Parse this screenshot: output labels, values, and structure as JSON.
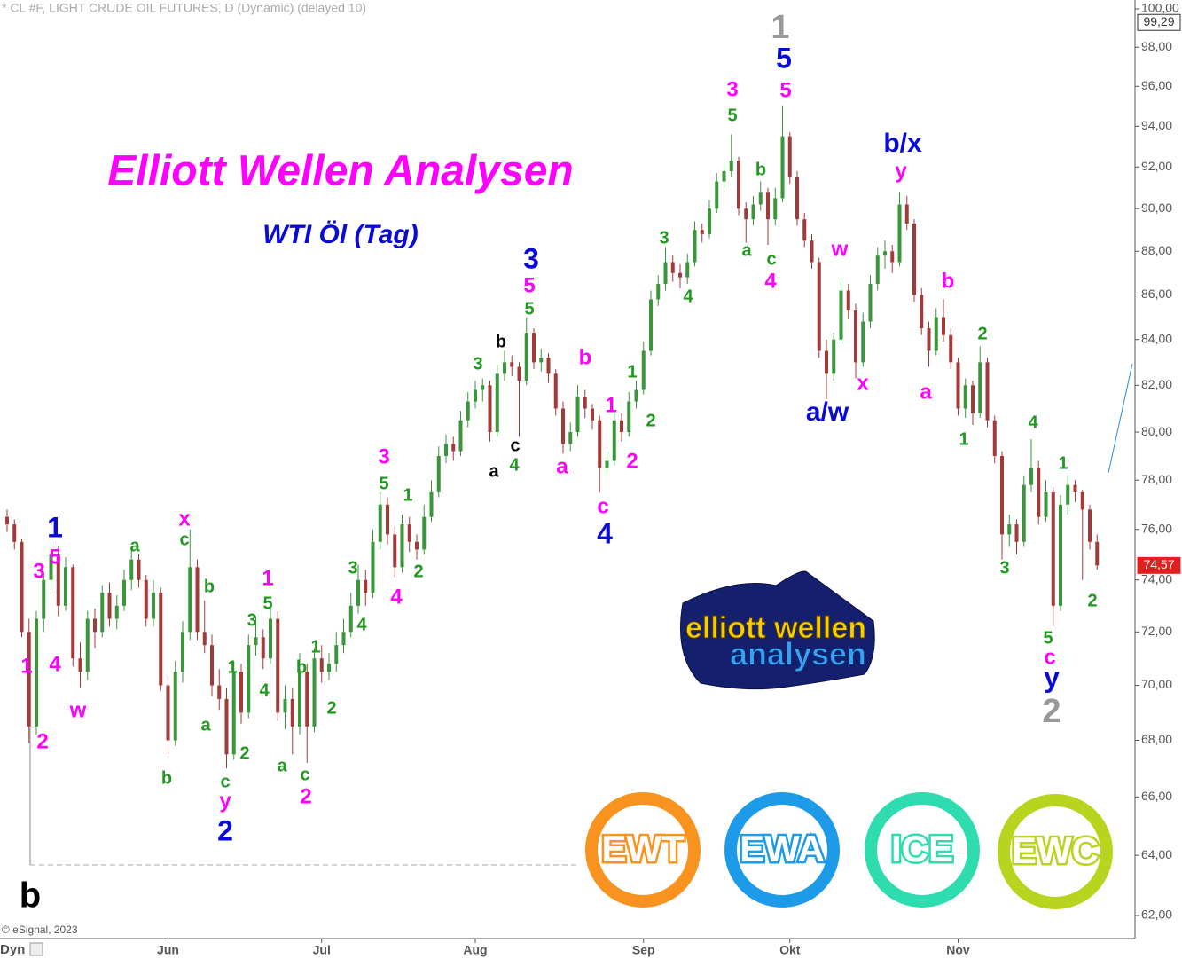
{
  "chart_data": {
    "type": "candlestick",
    "header": "* CL #F, LIGHT CRUDE OIL FUTURES, D (Dynamic) (delayed 10)",
    "title": "Elliott Wellen Analysen",
    "subtitle": "WTI Öl (Tag)",
    "copyright": "© eSignal, 2023",
    "dyn_label": "Dyn",
    "log_scale": true,
    "up_color": "#3a963a",
    "down_color": "#a33a3a",
    "ylim": [
      62,
      100
    ],
    "yticks": [
      {
        "value": 62,
        "label": "62,00"
      },
      {
        "value": 64,
        "label": "64,00"
      },
      {
        "value": 66,
        "label": "66,00"
      },
      {
        "value": 68,
        "label": "68,00"
      },
      {
        "value": 70,
        "label": "70,00"
      },
      {
        "value": 72,
        "label": "72,00"
      },
      {
        "value": 74,
        "label": "74,00"
      },
      {
        "value": 76,
        "label": "76,00"
      },
      {
        "value": 78,
        "label": "78,00"
      },
      {
        "value": 80,
        "label": "80,00"
      },
      {
        "value": 82,
        "label": "82,00"
      },
      {
        "value": 84,
        "label": "84,00"
      },
      {
        "value": 86,
        "label": "86,00"
      },
      {
        "value": 88,
        "label": "88,00"
      },
      {
        "value": 90,
        "label": "90,00"
      },
      {
        "value": 92,
        "label": "92,00"
      },
      {
        "value": 94,
        "label": "94,00"
      },
      {
        "value": 96,
        "label": "96,00"
      },
      {
        "value": 98,
        "label": "98,00"
      },
      {
        "value": 100,
        "label": "100,00"
      }
    ],
    "xticks": [
      {
        "value": 22,
        "label": "Jun"
      },
      {
        "value": 43,
        "label": "Jul"
      },
      {
        "value": 64,
        "label": "Aug"
      },
      {
        "value": 87,
        "label": "Sep"
      },
      {
        "value": 107,
        "label": "Okt"
      },
      {
        "value": 130,
        "label": "Nov"
      }
    ],
    "price_labels": [
      {
        "value": 99.29,
        "label": "99,29",
        "color": "#333"
      },
      {
        "value": 74.57,
        "label": "74,57",
        "color": "#e02020"
      }
    ],
    "candles": [
      [
        76.5,
        76.8,
        75.9,
        76.2
      ],
      [
        76.2,
        76.4,
        75.2,
        75.5
      ],
      [
        75.5,
        75.6,
        71.8,
        72
      ],
      [
        72,
        72.5,
        67.9,
        68.5
      ],
      [
        68.5,
        72.8,
        68.2,
        72.5
      ],
      [
        72.5,
        74.3,
        72,
        74
      ],
      [
        74,
        75.5,
        73.6,
        75
      ],
      [
        75,
        75.3,
        72.6,
        73
      ],
      [
        73,
        74.9,
        72.8,
        74.5
      ],
      [
        74.5,
        74.6,
        70.7,
        71
      ],
      [
        71,
        71.6,
        69.9,
        70.5
      ],
      [
        70.5,
        72.8,
        70.2,
        72.5
      ],
      [
        72.5,
        72.9,
        71.4,
        72
      ],
      [
        72,
        73.8,
        71.8,
        73.5
      ],
      [
        73.5,
        73.9,
        72.2,
        72.5
      ],
      [
        72.5,
        73.4,
        72.1,
        73
      ],
      [
        73,
        74.4,
        72.8,
        74
      ],
      [
        74,
        75.3,
        73.6,
        74.8
      ],
      [
        74.8,
        75,
        73.7,
        74
      ],
      [
        74,
        74.2,
        72.2,
        72.5
      ],
      [
        72.5,
        74,
        72.2,
        73.5
      ],
      [
        73.5,
        73.7,
        69.8,
        70
      ],
      [
        70,
        70.4,
        67.5,
        68
      ],
      [
        68,
        70.9,
        67.8,
        70.5
      ],
      [
        70.5,
        72.4,
        70.1,
        72
      ],
      [
        72,
        76,
        71.7,
        74.5
      ],
      [
        74.5,
        74.8,
        71.7,
        72
      ],
      [
        72,
        73.2,
        71.2,
        71.5
      ],
      [
        71.5,
        71.9,
        69.6,
        70
      ],
      [
        70,
        70.6,
        69.1,
        69.5
      ],
      [
        69.5,
        69.9,
        67,
        67.5
      ],
      [
        67.5,
        70.9,
        67.3,
        70.5
      ],
      [
        70.5,
        70.8,
        68.6,
        69
      ],
      [
        69,
        71.9,
        68.8,
        71.5
      ],
      [
        71.5,
        72.6,
        71.1,
        71.8
      ],
      [
        71.8,
        72.1,
        70.6,
        71
      ],
      [
        71,
        73.2,
        70.8,
        72.5
      ],
      [
        72.5,
        72.8,
        68.7,
        69
      ],
      [
        69,
        70,
        68.4,
        69.5
      ],
      [
        69.5,
        69.9,
        67.5,
        68.5
      ],
      [
        68.5,
        71.2,
        68.2,
        70.5
      ],
      [
        70.5,
        70.8,
        67.2,
        68.5
      ],
      [
        68.5,
        71.4,
        68.3,
        71
      ],
      [
        71,
        71.5,
        70.1,
        70.5
      ],
      [
        70.5,
        71.2,
        70.2,
        70.8
      ],
      [
        70.8,
        72,
        70.5,
        71.5
      ],
      [
        71.5,
        72.5,
        71.2,
        72
      ],
      [
        72,
        73.5,
        71.8,
        73
      ],
      [
        73,
        74.6,
        72.7,
        74
      ],
      [
        74,
        74.4,
        73,
        73.5
      ],
      [
        73.5,
        76,
        73.3,
        75.5
      ],
      [
        75.5,
        77.5,
        75.2,
        77
      ],
      [
        77,
        77.3,
        75.4,
        75.8
      ],
      [
        75.8,
        76.1,
        74.1,
        74.5
      ],
      [
        74.5,
        76.6,
        74.3,
        76.2
      ],
      [
        76.2,
        76.5,
        75.1,
        75.5
      ],
      [
        75.5,
        75.8,
        74.8,
        75.2
      ],
      [
        75.2,
        77,
        75,
        76.5
      ],
      [
        76.5,
        78,
        76.3,
        77.5
      ],
      [
        77.5,
        79.4,
        77.3,
        79
      ],
      [
        79,
        79.9,
        78.7,
        79.5
      ],
      [
        79.5,
        79.8,
        78.8,
        79.2
      ],
      [
        79.2,
        80.9,
        79,
        80.5
      ],
      [
        80.5,
        81.7,
        80.2,
        81.3
      ],
      [
        81.3,
        82.2,
        81,
        81.8
      ],
      [
        81.8,
        82.3,
        81.3,
        82
      ],
      [
        82,
        82.2,
        79.6,
        80
      ],
      [
        80,
        82.9,
        79.8,
        82.5
      ],
      [
        82.5,
        83.5,
        82.2,
        83
      ],
      [
        83,
        83.3,
        82.4,
        82.8
      ],
      [
        82.8,
        83,
        79.8,
        82.2
      ],
      [
        82.2,
        85,
        82,
        84.3
      ],
      [
        84.3,
        84.5,
        82.7,
        83
      ],
      [
        83,
        83.6,
        82.6,
        83.2
      ],
      [
        83.2,
        83.4,
        82.1,
        82.5
      ],
      [
        82.5,
        82.7,
        80.7,
        81
      ],
      [
        81,
        81.3,
        79.1,
        79.5
      ],
      [
        79.5,
        80.4,
        79.2,
        80
      ],
      [
        80,
        82,
        79.8,
        81.5
      ],
      [
        81.5,
        81.8,
        80.6,
        81
      ],
      [
        81,
        81.2,
        80.1,
        80.5
      ],
      [
        80.5,
        80.7,
        77.5,
        78.5
      ],
      [
        78.5,
        79.2,
        78.2,
        78.8
      ],
      [
        78.8,
        80.9,
        78.6,
        80.5
      ],
      [
        80.5,
        80.8,
        79.6,
        80
      ],
      [
        80,
        81.7,
        79.8,
        81.3
      ],
      [
        81.3,
        82.2,
        81,
        81.8
      ],
      [
        81.8,
        83.9,
        81.6,
        83.5
      ],
      [
        83.5,
        86.2,
        83.3,
        85.8
      ],
      [
        85.8,
        86.9,
        85.5,
        86.5
      ],
      [
        86.5,
        88.2,
        86.2,
        87.5
      ],
      [
        87.5,
        87.8,
        86.6,
        87
      ],
      [
        87,
        87.4,
        86.3,
        86.8
      ],
      [
        86.8,
        87.9,
        86.5,
        87.5
      ],
      [
        87.5,
        89.4,
        87.3,
        89
      ],
      [
        89,
        89.3,
        88.4,
        88.8
      ],
      [
        88.8,
        90.4,
        88.6,
        90
      ],
      [
        90,
        91.7,
        89.8,
        91.3
      ],
      [
        91.3,
        92.2,
        91,
        91.8
      ],
      [
        91.8,
        93.6,
        91.5,
        92.3
      ],
      [
        92.3,
        92.5,
        89.7,
        90
      ],
      [
        90,
        90.3,
        88.4,
        89.5
      ],
      [
        89.5,
        90.6,
        89.2,
        90.2
      ],
      [
        90.2,
        91.3,
        89.9,
        90.8
      ],
      [
        90.8,
        91,
        88.3,
        89.5
      ],
      [
        89.5,
        91,
        89.2,
        90.5
      ],
      [
        90.5,
        95,
        90.3,
        93.5
      ],
      [
        93.5,
        93.7,
        91.2,
        91.5
      ],
      [
        91.5,
        91.8,
        89.2,
        89.5
      ],
      [
        89.5,
        89.8,
        88.2,
        88.5
      ],
      [
        88.5,
        88.8,
        87.2,
        87.5
      ],
      [
        87.5,
        87.7,
        83.2,
        83.5
      ],
      [
        83.5,
        84,
        81.4,
        82.5
      ],
      [
        82.5,
        84.3,
        82.2,
        84
      ],
      [
        84,
        86.8,
        83.8,
        86.2
      ],
      [
        86.2,
        86.5,
        84.9,
        85.3
      ],
      [
        85.3,
        85.6,
        82.3,
        83
      ],
      [
        83,
        85.2,
        82.8,
        84.8
      ],
      [
        84.8,
        86.9,
        84.5,
        86.5
      ],
      [
        86.5,
        88.2,
        86.2,
        87.8
      ],
      [
        87.8,
        88.5,
        87.2,
        88
      ],
      [
        88,
        88.3,
        87,
        87.5
      ],
      [
        87.5,
        90.8,
        87.3,
        90.2
      ],
      [
        90.2,
        90.6,
        89,
        89.3
      ],
      [
        89.3,
        89.5,
        85.7,
        86
      ],
      [
        86,
        86.3,
        84.2,
        84.5
      ],
      [
        84.5,
        84.8,
        82.8,
        83.5
      ],
      [
        83.5,
        85.4,
        83.3,
        85
      ],
      [
        85,
        85.8,
        83.9,
        84.2
      ],
      [
        84.2,
        84.5,
        82.7,
        83
      ],
      [
        83,
        83.2,
        80.7,
        81
      ],
      [
        81,
        82.3,
        80.6,
        82
      ],
      [
        82,
        82.2,
        80.3,
        80.8
      ],
      [
        80.8,
        83.7,
        80.6,
        83
      ],
      [
        83,
        83.2,
        80.2,
        80.5
      ],
      [
        80.5,
        80.7,
        78.7,
        79
      ],
      [
        79,
        79.2,
        74.8,
        75.8
      ],
      [
        75.8,
        76.6,
        75.3,
        76.2
      ],
      [
        76.2,
        76.4,
        75,
        75.5
      ],
      [
        75.5,
        78.2,
        75.3,
        77.8
      ],
      [
        77.8,
        79.7,
        77.5,
        78.5
      ],
      [
        78.5,
        78.8,
        76.2,
        76.5
      ],
      [
        76.5,
        78,
        76.3,
        77.5
      ],
      [
        77.5,
        77.7,
        72.2,
        73
      ],
      [
        73,
        77.4,
        72.8,
        77
      ],
      [
        77,
        78.2,
        76.6,
        77.8
      ],
      [
        77.8,
        78,
        77.1,
        77.5
      ],
      [
        77.5,
        77.6,
        74,
        76.8
      ],
      [
        76.8,
        77,
        75.2,
        75.5
      ],
      [
        75.5,
        75.8,
        74.4,
        74.57
      ]
    ],
    "annotations": [
      {
        "text": "1",
        "color": "#0a0ad8"
      },
      {
        "text": "5",
        "color": "#ff00ff"
      },
      {
        "text": "3",
        "color": "#ff00ff"
      },
      {
        "text": "1",
        "color": "#ff00ff"
      },
      {
        "text": "4",
        "color": "#ff00ff"
      },
      {
        "text": "2",
        "color": "#ff00ff"
      },
      {
        "text": "w",
        "color": "#ff00ff"
      },
      {
        "text": "a",
        "color": "#1f9a1f"
      },
      {
        "text": "b",
        "color": "#1f9a1f"
      },
      {
        "text": "x",
        "color": "#ff00ff"
      },
      {
        "text": "c",
        "color": "#1f9a1f"
      },
      {
        "text": "b",
        "color": "#1f9a1f"
      },
      {
        "text": "a",
        "color": "#1f9a1f"
      },
      {
        "text": "1",
        "color": "#1f9a1f"
      },
      {
        "text": "2",
        "color": "#1f9a1f"
      },
      {
        "text": "c",
        "color": "#1f9a1f"
      },
      {
        "text": "y",
        "color": "#ff00ff"
      },
      {
        "text": "2",
        "color": "#0a0ad8"
      },
      {
        "text": "1",
        "color": "#ff00ff"
      },
      {
        "text": "5",
        "color": "#1f9a1f"
      },
      {
        "text": "3",
        "color": "#1f9a1f"
      },
      {
        "text": "4",
        "color": "#1f9a1f"
      },
      {
        "text": "a",
        "color": "#1f9a1f"
      },
      {
        "text": "b",
        "color": "#1f9a1f"
      },
      {
        "text": "c",
        "color": "#1f9a1f"
      },
      {
        "text": "2",
        "color": "#ff00ff"
      },
      {
        "text": "1",
        "color": "#1f9a1f"
      },
      {
        "text": "2",
        "color": "#1f9a1f"
      },
      {
        "text": "3",
        "color": "#1f9a1f"
      },
      {
        "text": "4",
        "color": "#1f9a1f"
      },
      {
        "text": "3",
        "color": "#ff00ff"
      },
      {
        "text": "5",
        "color": "#1f9a1f"
      },
      {
        "text": "1",
        "color": "#1f9a1f"
      },
      {
        "text": "2",
        "color": "#1f9a1f"
      },
      {
        "text": "4",
        "color": "#ff00ff"
      },
      {
        "text": "3",
        "color": "#1f9a1f"
      },
      {
        "text": "b",
        "color": "#000000"
      },
      {
        "text": "c",
        "color": "#000000"
      },
      {
        "text": "a",
        "color": "#000000"
      },
      {
        "text": "4",
        "color": "#1f9a1f"
      },
      {
        "text": "3",
        "color": "#0a0ad8"
      },
      {
        "text": "5",
        "color": "#ff00ff"
      },
      {
        "text": "5",
        "color": "#1f9a1f"
      },
      {
        "text": "b",
        "color": "#ff00ff"
      },
      {
        "text": "a",
        "color": "#ff00ff"
      },
      {
        "text": "1",
        "color": "#ff00ff"
      },
      {
        "text": "1",
        "color": "#1f9a1f"
      },
      {
        "text": "2",
        "color": "#ff00ff"
      },
      {
        "text": "2",
        "color": "#1f9a1f"
      },
      {
        "text": "c",
        "color": "#ff00ff"
      },
      {
        "text": "4",
        "color": "#0a0ad8"
      },
      {
        "text": "3",
        "color": "#1f9a1f"
      },
      {
        "text": "4",
        "color": "#1f9a1f"
      },
      {
        "text": "3",
        "color": "#ff00ff"
      },
      {
        "text": "5",
        "color": "#1f9a1f"
      },
      {
        "text": "b",
        "color": "#1f9a1f"
      },
      {
        "text": "a",
        "color": "#1f9a1f"
      },
      {
        "text": "c",
        "color": "#1f9a1f"
      },
      {
        "text": "4",
        "color": "#ff00ff"
      },
      {
        "text": "1",
        "color": "#999999"
      },
      {
        "text": "5",
        "color": "#0a0ad8"
      },
      {
        "text": "5",
        "color": "#ff00ff"
      },
      {
        "text": "w",
        "color": "#ff00ff"
      },
      {
        "text": "a/w",
        "color": "#0a0ad8"
      },
      {
        "text": "x",
        "color": "#ff00ff"
      },
      {
        "text": "b/x",
        "color": "#0a0ad8"
      },
      {
        "text": "y",
        "color": "#ff00ff"
      },
      {
        "text": "b",
        "color": "#ff00ff"
      },
      {
        "text": "a",
        "color": "#ff00ff"
      },
      {
        "text": "2",
        "color": "#1f9a1f"
      },
      {
        "text": "1",
        "color": "#1f9a1f"
      },
      {
        "text": "3",
        "color": "#1f9a1f"
      },
      {
        "text": "4",
        "color": "#1f9a1f"
      },
      {
        "text": "1",
        "color": "#1f9a1f"
      },
      {
        "text": "2",
        "color": "#1f9a1f"
      },
      {
        "text": "5",
        "color": "#1f9a1f"
      },
      {
        "text": "c",
        "color": "#ff00ff"
      },
      {
        "text": "y",
        "color": "#0a0ad8"
      },
      {
        "text": "2",
        "color": "#999999"
      },
      {
        "text": "b",
        "color": "#000000"
      }
    ],
    "logo": {
      "line1": "elliott wellen",
      "line2": "analysen"
    },
    "badges": [
      {
        "text": "EWT",
        "color": "#f7931e"
      },
      {
        "text": "EWA",
        "color": "#1e9be8"
      },
      {
        "text": "ICE",
        "color": "#2fdcb0"
      },
      {
        "text": "EWC",
        "color": "#b8d41e"
      }
    ]
  }
}
